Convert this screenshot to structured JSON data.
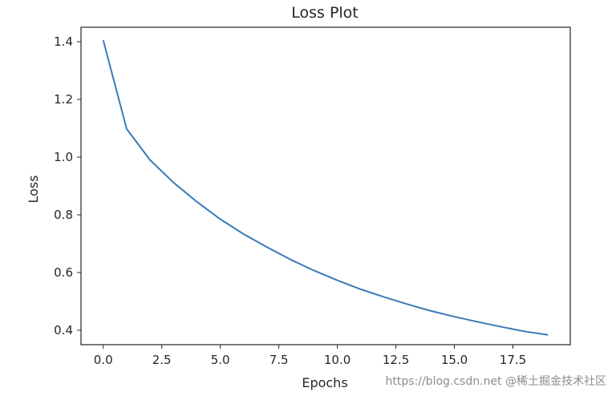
{
  "chart_data": {
    "type": "line",
    "title": "Loss Plot",
    "xlabel": "Epochs",
    "ylabel": "Loss",
    "xlim": [
      -0.95,
      19.95
    ],
    "ylim": [
      0.35,
      1.45
    ],
    "x_ticks": [
      0.0,
      2.5,
      5.0,
      7.5,
      10.0,
      12.5,
      15.0,
      17.5
    ],
    "x_tick_labels": [
      "0.0",
      "2.5",
      "5.0",
      "7.5",
      "10.0",
      "12.5",
      "15.0",
      "17.5"
    ],
    "y_ticks": [
      0.4,
      0.6,
      0.8,
      1.0,
      1.2,
      1.4
    ],
    "y_tick_labels": [
      "0.4",
      "0.6",
      "0.8",
      "1.0",
      "1.2",
      "1.4"
    ],
    "grid": false,
    "series": [
      {
        "color": "#3a7ab8",
        "x": [
          0,
          1,
          2,
          3,
          4,
          5,
          6,
          7,
          8,
          9,
          10,
          11,
          12,
          13,
          14,
          15,
          16,
          17,
          18,
          19
        ],
        "values": [
          1.405,
          1.098,
          0.99,
          0.912,
          0.845,
          0.785,
          0.733,
          0.688,
          0.645,
          0.607,
          0.573,
          0.542,
          0.515,
          0.49,
          0.467,
          0.447,
          0.429,
          0.412,
          0.396,
          0.384
        ]
      }
    ]
  },
  "watermark": "https://blog.csdn.net @稀土掘金技术社区"
}
